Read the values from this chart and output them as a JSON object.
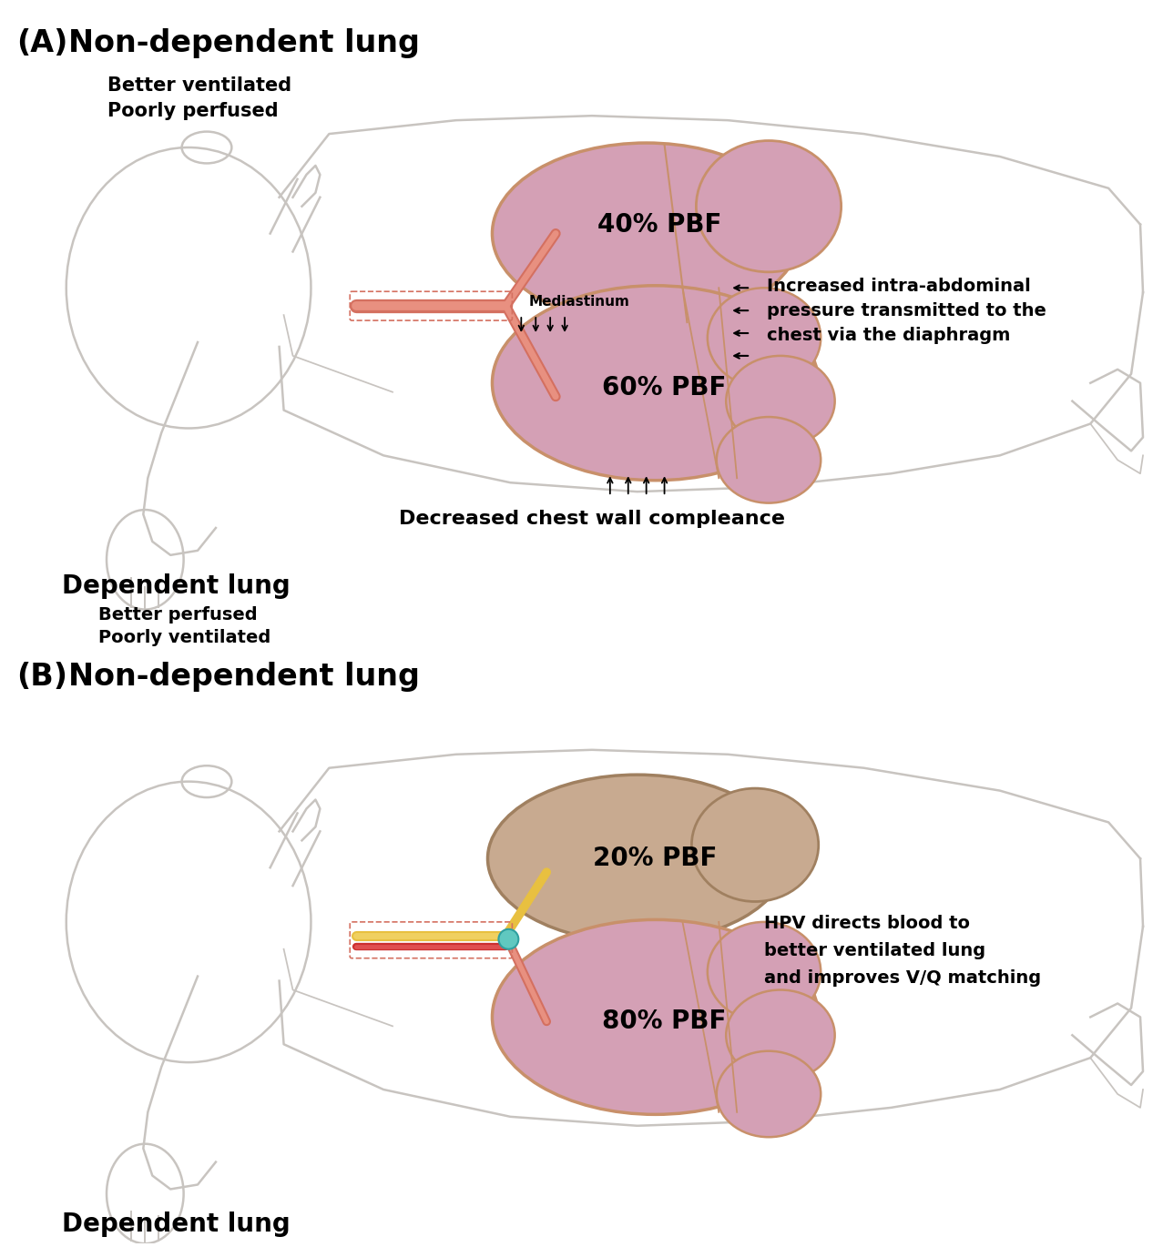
{
  "bg_color": "#ffffff",
  "fig_width": 12.77,
  "fig_height": 13.7,
  "body_color": "#e8e4e0",
  "body_edge": "#c8c4c0",
  "lung_pink": "#d4a0b5",
  "lung_outline": "#c8906a",
  "lung_tan": "#c8aa90",
  "lung_tan_outline": "#a08060",
  "panel_A": {
    "label": "(A)",
    "title": "Non-dependent lung",
    "subtitle1": "Better ventilated",
    "subtitle2": "Poorly perfused",
    "dep_label": "Dependent lung",
    "dep_sub1": "Better perfused",
    "dep_sub2": "Poorly ventilated",
    "lung_top_text": "40% PBF",
    "lung_bot_text": "60% PBF",
    "mediastinum_text": "Mediastinum",
    "arrow_text_line1": "Increased intra-abdominal",
    "arrow_text_line2": "pressure transmitted to the",
    "arrow_text_line3": "chest via the diaphragm",
    "bottom_arrow_text": "Decreased chest wall compleance"
  },
  "panel_B": {
    "label": "(B)",
    "title": "Non-dependent lung",
    "dep_label": "Dependent lung",
    "lung_top_text": "20% PBF",
    "lung_bot_text": "80% PBF",
    "hpv_line1": "HPV directs blood to",
    "hpv_line2": "better ventilated lung",
    "hpv_line3": "and improves V/Q matching"
  }
}
